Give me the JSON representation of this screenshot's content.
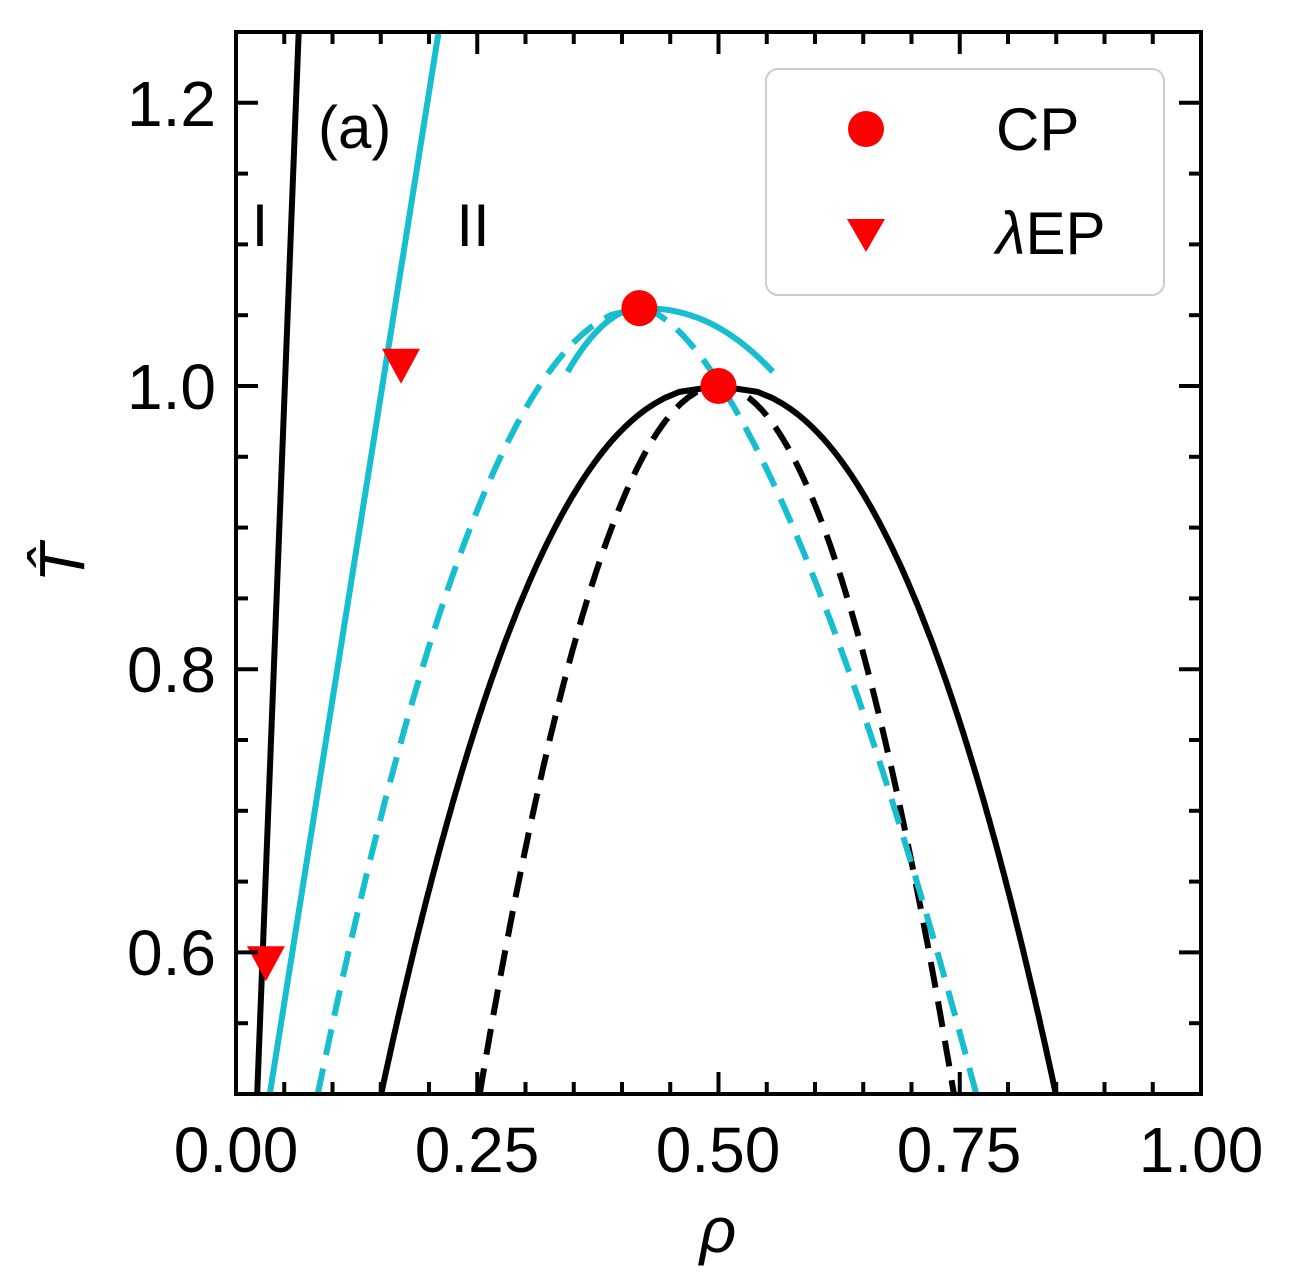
{
  "chart_data": {
    "type": "line",
    "panel_label": "(a)",
    "xlabel": "ρ",
    "ylabel": "T̂",
    "xlim": [
      0.0,
      1.0
    ],
    "ylim": [
      0.5,
      1.25
    ],
    "x_ticks": [
      0.0,
      0.25,
      0.5,
      0.75,
      1.0
    ],
    "x_tick_labels": [
      "0.00",
      "0.25",
      "0.50",
      "0.75",
      "1.00"
    ],
    "y_ticks": [
      0.6,
      0.8,
      1.0,
      1.2
    ],
    "y_tick_labels": [
      "0.6",
      "0.8",
      "1.0",
      "1.2"
    ],
    "colors": {
      "black": "#000000",
      "cyan": "#17becf",
      "marker": "#ff0000"
    },
    "region_labels": [
      {
        "text": "I",
        "x": 0.025,
        "y": 1.115
      },
      {
        "text": "II",
        "x": 0.245,
        "y": 1.115
      }
    ],
    "series": [
      {
        "name": "binodal-black",
        "color": "#000000",
        "dash": "solid",
        "tc": 1.0,
        "rc": 0.5,
        "left_coeff": 0.4775,
        "right_coeff": 0.4775,
        "left_exp": 0.45,
        "right_exp": 0.45,
        "tmin": 0.5
      },
      {
        "name": "spinodal-black",
        "color": "#000000",
        "dash": "dashed",
        "tc": 1.0,
        "rc": 0.5,
        "left_coeff": 0.35,
        "right_coeff": 0.345,
        "left_exp": 0.5,
        "right_exp": 0.5,
        "tmin": 0.5
      },
      {
        "name": "binodal-cyan",
        "color": "#17becf",
        "dash": "solid",
        "tc": 1.055,
        "rc": 0.42,
        "left_coeff": 0.36,
        "right_coeff": 0.55,
        "left_exp": 0.5,
        "right_exp": 0.45,
        "tmin": 1.01
      },
      {
        "name": "spinodal-cyan",
        "color": "#17becf",
        "dash": "dashed",
        "tc": 1.055,
        "rc": 0.42,
        "left_coeff": 0.45,
        "right_coeff": 0.5,
        "left_exp": 0.5,
        "right_exp": 0.62,
        "tmin": 0.5
      },
      {
        "name": "lambda-line-I",
        "color": "#000000",
        "dash": "solid",
        "type": "line",
        "points": [
          [
            0.022,
            0.5
          ],
          [
            0.065,
            1.25
          ]
        ]
      },
      {
        "name": "lambda-line-II",
        "color": "#17becf",
        "dash": "solid",
        "type": "line",
        "points": [
          [
            0.035,
            0.5
          ],
          [
            0.21,
            1.25
          ]
        ]
      }
    ],
    "critical_points": [
      {
        "x": 0.5,
        "y": 1.0
      },
      {
        "x": 0.418,
        "y": 1.055
      }
    ],
    "lambda_endpoints": [
      {
        "x": 0.031,
        "y": 0.593
      },
      {
        "x": 0.171,
        "y": 1.015
      }
    ],
    "legend": {
      "placement": "top-right",
      "entries": [
        {
          "marker": "circle",
          "label": "CP"
        },
        {
          "marker": "triangle-down",
          "label_italic": "λ",
          "label": "EP"
        }
      ]
    }
  }
}
